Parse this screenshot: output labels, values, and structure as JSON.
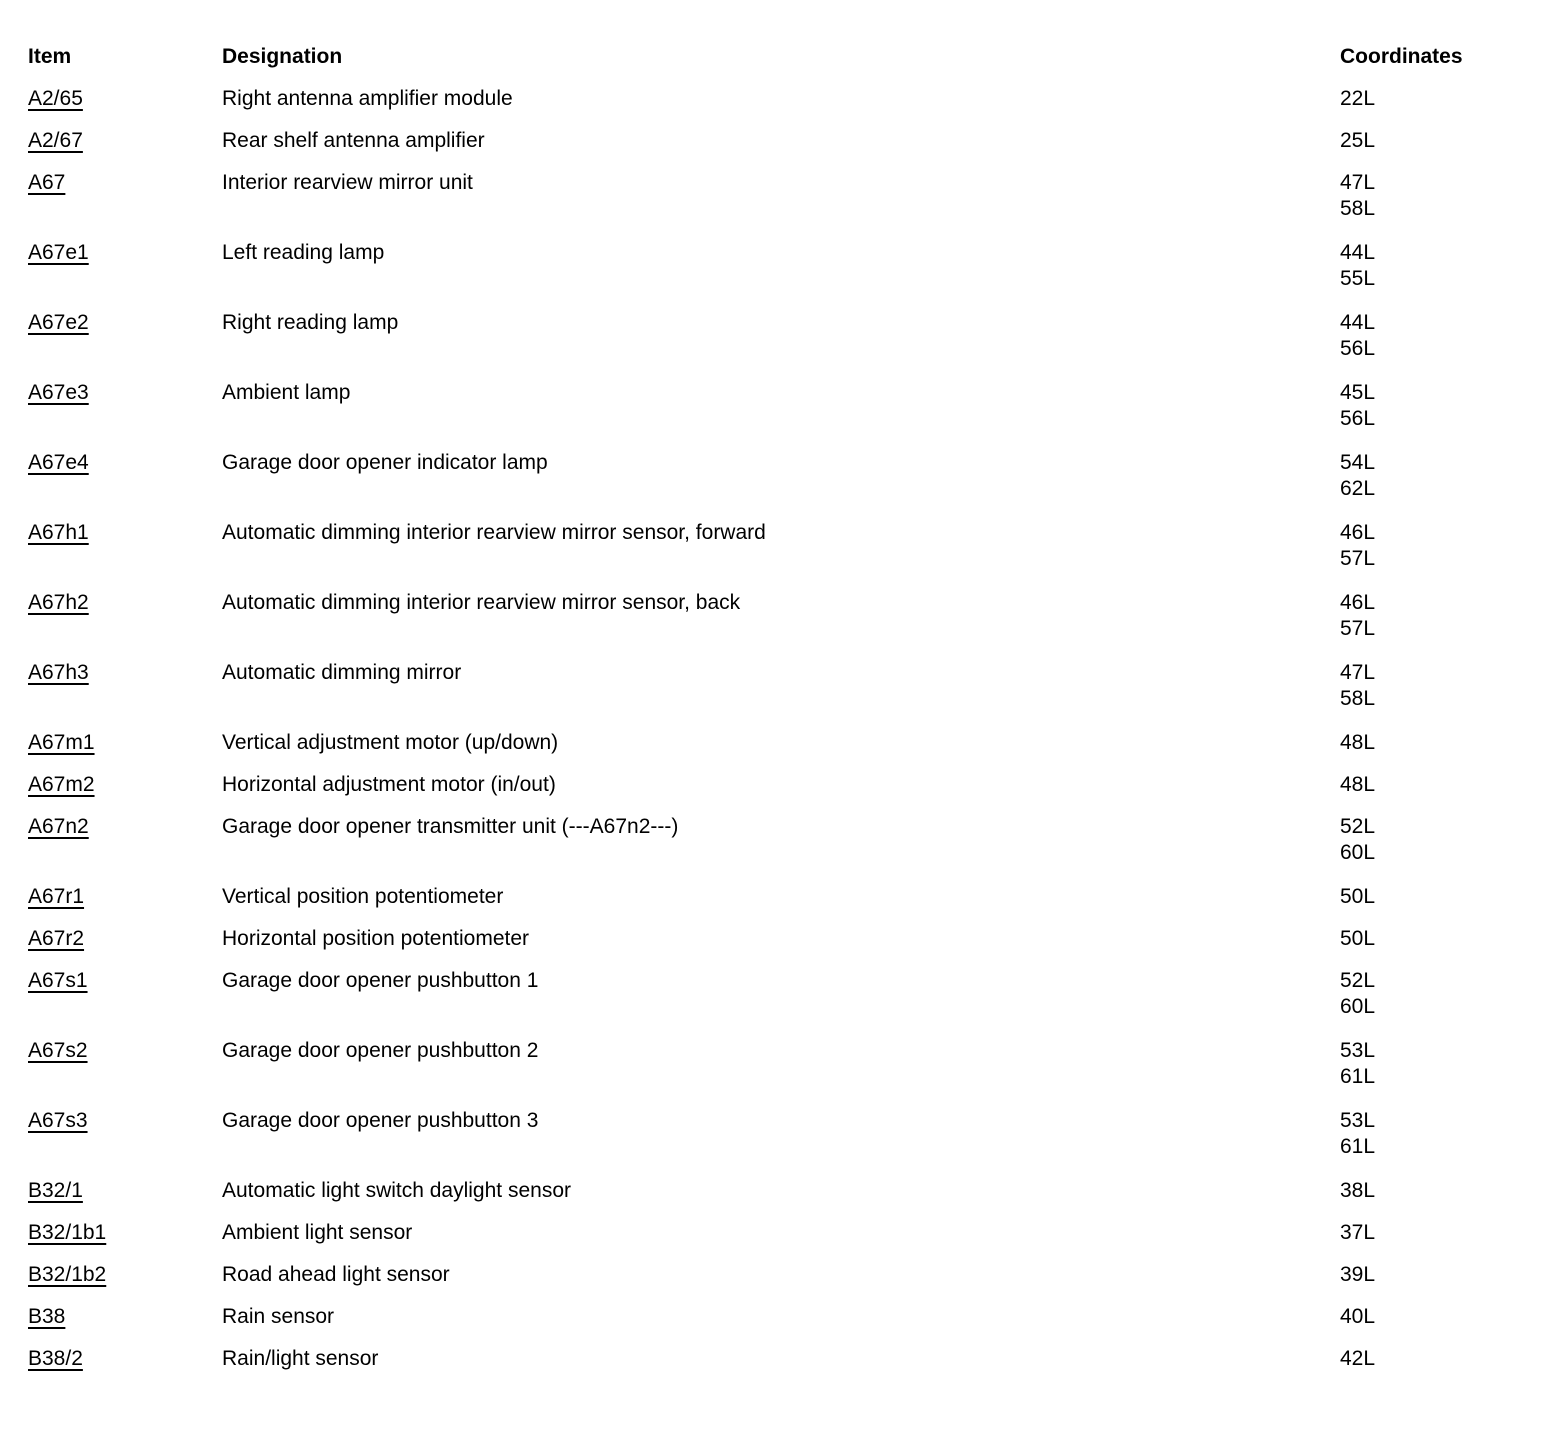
{
  "table": {
    "headers": {
      "item": "Item",
      "designation": "Designation",
      "coordinates": "Coordinates"
    },
    "rows": [
      {
        "item": "A2/65",
        "designation": "Right antenna amplifier module",
        "coordinates": [
          "22L"
        ]
      },
      {
        "item": "A2/67",
        "designation": "Rear shelf antenna amplifier",
        "coordinates": [
          "25L"
        ]
      },
      {
        "item": "A67",
        "designation": "Interior rearview mirror unit",
        "coordinates": [
          "47L",
          "58L"
        ]
      },
      {
        "item": "A67e1",
        "designation": "Left reading lamp",
        "coordinates": [
          "44L",
          "55L"
        ]
      },
      {
        "item": "A67e2",
        "designation": "Right reading lamp",
        "coordinates": [
          "44L",
          "56L"
        ]
      },
      {
        "item": "A67e3",
        "designation": "Ambient lamp",
        "coordinates": [
          "45L",
          "56L"
        ]
      },
      {
        "item": "A67e4",
        "designation": "Garage door opener indicator lamp",
        "coordinates": [
          "54L",
          "62L"
        ]
      },
      {
        "item": "A67h1",
        "designation": "Automatic dimming interior rearview mirror sensor, forward",
        "coordinates": [
          "46L",
          "57L"
        ]
      },
      {
        "item": "A67h2",
        "designation": "Automatic dimming interior rearview mirror sensor, back",
        "coordinates": [
          "46L",
          "57L"
        ]
      },
      {
        "item": "A67h3",
        "designation": "Automatic dimming mirror",
        "coordinates": [
          "47L",
          "58L"
        ]
      },
      {
        "item": "A67m1",
        "designation": "Vertical adjustment motor (up/down)",
        "coordinates": [
          "48L"
        ]
      },
      {
        "item": "A67m2",
        "designation": "Horizontal adjustment motor (in/out)",
        "coordinates": [
          "48L"
        ]
      },
      {
        "item": "A67n2",
        "designation": "Garage door opener transmitter unit (---A67n2---)",
        "coordinates": [
          "52L",
          "60L"
        ]
      },
      {
        "item": "A67r1",
        "designation": "Vertical position potentiometer",
        "coordinates": [
          "50L"
        ]
      },
      {
        "item": "A67r2",
        "designation": "Horizontal position potentiometer",
        "coordinates": [
          "50L"
        ]
      },
      {
        "item": "A67s1",
        "designation": "Garage door opener pushbutton 1",
        "coordinates": [
          "52L",
          "60L"
        ]
      },
      {
        "item": "A67s2",
        "designation": "Garage door opener pushbutton 2",
        "coordinates": [
          "53L",
          "61L"
        ]
      },
      {
        "item": "A67s3",
        "designation": "Garage door opener pushbutton 3",
        "coordinates": [
          "53L",
          "61L"
        ]
      },
      {
        "item": "B32/1",
        "designation": "Automatic light switch daylight sensor",
        "coordinates": [
          "38L"
        ]
      },
      {
        "item": "B32/1b1",
        "designation": "Ambient light sensor",
        "coordinates": [
          "37L"
        ]
      },
      {
        "item": "B32/1b2",
        "designation": "Road ahead light sensor",
        "coordinates": [
          "39L"
        ]
      },
      {
        "item": "B38",
        "designation": "Rain sensor",
        "coordinates": [
          "40L"
        ]
      },
      {
        "item": "B38/2",
        "designation": "Rain/light sensor",
        "coordinates": [
          "42L"
        ]
      }
    ]
  }
}
